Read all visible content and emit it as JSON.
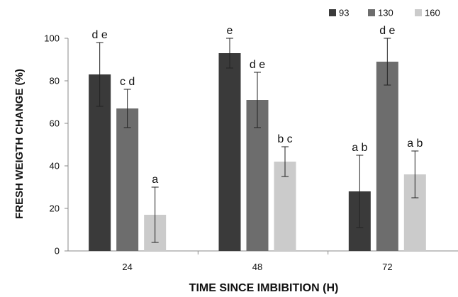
{
  "chart_data": {
    "type": "bar",
    "xlabel": "TIME SINCE IMBIBITION (H)",
    "ylabel": "FRESH WEIGTH CHANGE (%)",
    "ylim": [
      0,
      100
    ],
    "yticks": [
      "0",
      "20",
      "40",
      "60",
      "80",
      "100"
    ],
    "categories": [
      "24",
      "48",
      "72"
    ],
    "grid": false,
    "legend_position": "top-right",
    "series": [
      {
        "name": "93",
        "color": "#3a3a3a",
        "values": [
          83,
          93,
          28
        ],
        "error": [
          15,
          7,
          17
        ],
        "letters": [
          "d e",
          "e",
          "a b"
        ]
      },
      {
        "name": "130",
        "color": "#6d6d6d",
        "values": [
          67,
          71,
          89
        ],
        "error": [
          9,
          13,
          11
        ],
        "letters": [
          "c d",
          "d e",
          "d e"
        ]
      },
      {
        "name": "160",
        "color": "#cbcbcb",
        "values": [
          17,
          42,
          36
        ],
        "error": [
          13,
          7,
          11
        ],
        "letters": [
          "a",
          "b c",
          "a b"
        ]
      }
    ]
  }
}
